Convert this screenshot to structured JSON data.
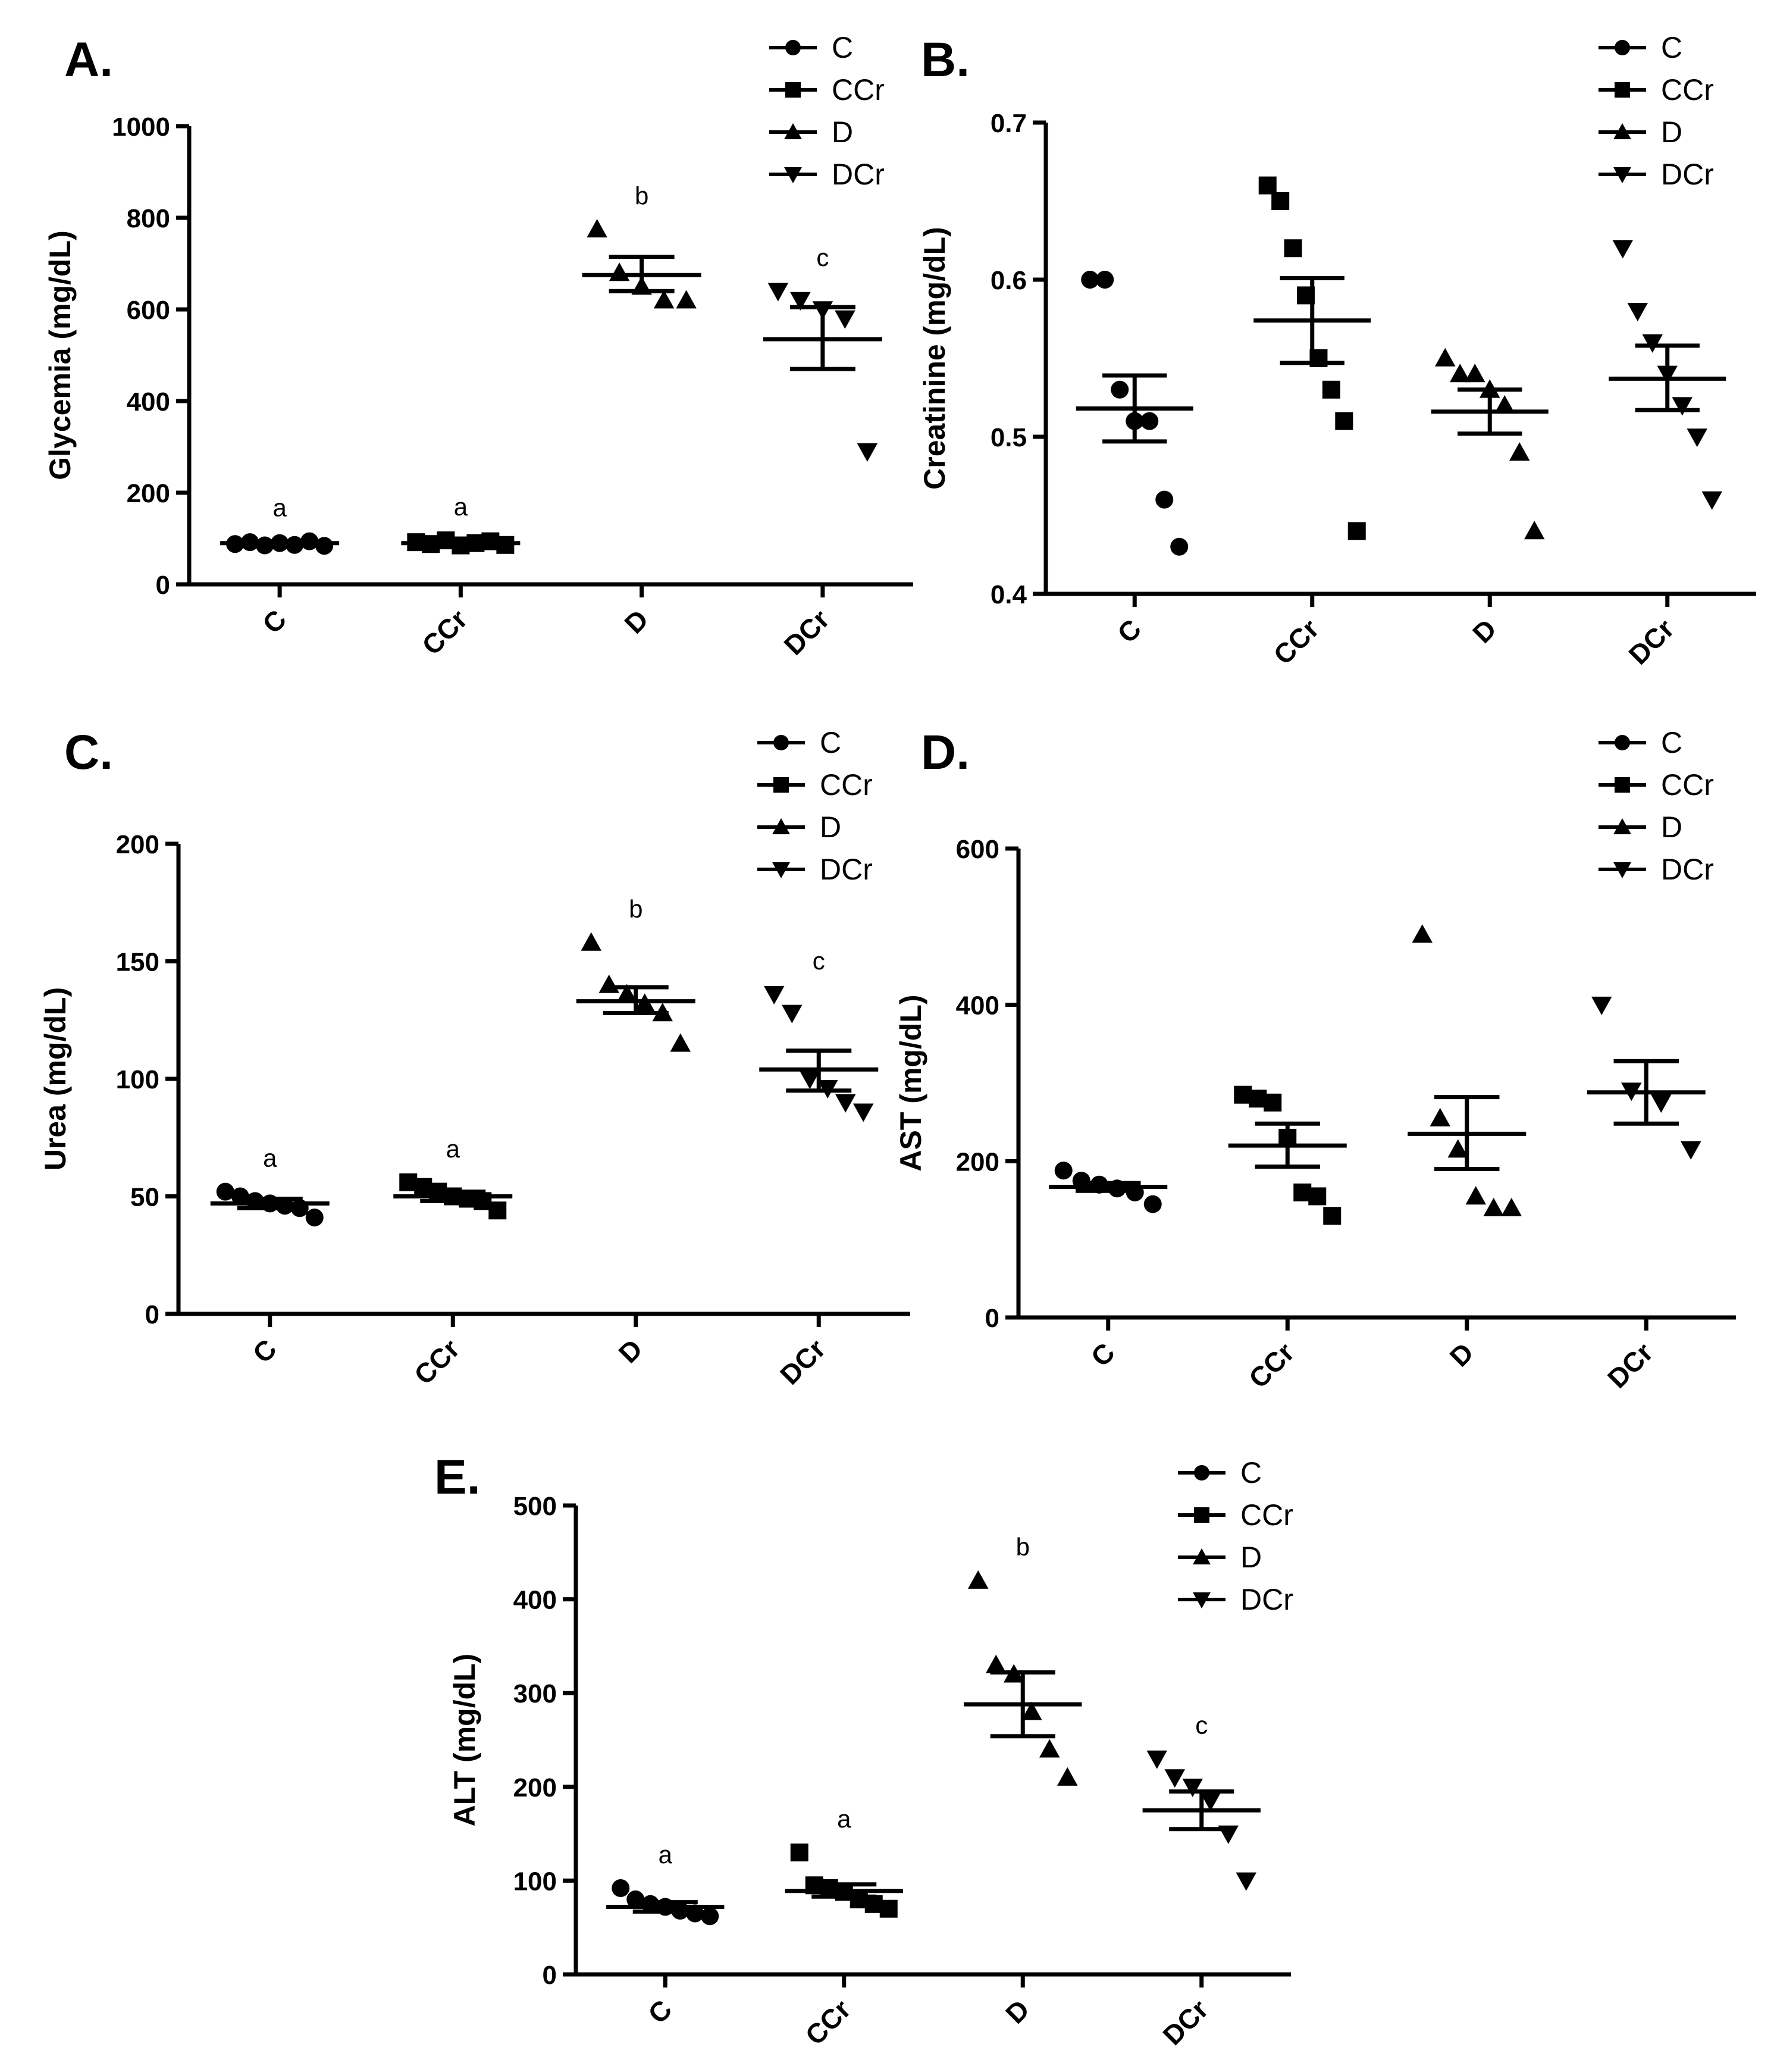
{
  "chart_data": [
    {
      "panel": "A.",
      "type": "scatter",
      "ylabel": "Glycemia (mg/dL)",
      "ylim": [
        0,
        1000
      ],
      "yticks": [
        0,
        200,
        400,
        600,
        800,
        1000
      ],
      "categories": [
        "C",
        "CCr",
        "D",
        "DCr"
      ],
      "legend": [
        "C",
        "CCr",
        "D",
        "DCr"
      ],
      "series": [
        {
          "name": "C",
          "marker": "circle",
          "points": [
            88,
            92,
            85,
            90,
            86,
            94,
            84
          ],
          "mean": 90,
          "sem_low": 86,
          "sem_high": 94,
          "sig": "a"
        },
        {
          "name": "CCr",
          "marker": "square",
          "points": [
            92,
            88,
            96,
            85,
            90,
            94,
            86
          ],
          "mean": 90,
          "sem_low": 86,
          "sem_high": 94,
          "sig": "a"
        },
        {
          "name": "D",
          "marker": "triangle-up",
          "points": [
            775,
            680,
            650,
            620,
            620
          ],
          "mean": 675,
          "sem_low": 640,
          "sem_high": 715,
          "sig": "b"
        },
        {
          "name": "DCr",
          "marker": "triangle-down",
          "points": [
            640,
            620,
            600,
            580,
            290
          ],
          "mean": 535,
          "sem_low": 470,
          "sem_high": 605,
          "sig": "c"
        }
      ]
    },
    {
      "panel": "B.",
      "type": "scatter",
      "ylabel": "Creatinine (mg/dL)",
      "ylim": [
        0.4,
        0.7
      ],
      "yticks": [
        0.4,
        0.5,
        0.6,
        0.7
      ],
      "categories": [
        "C",
        "CCr",
        "D",
        "DCr"
      ],
      "legend": [
        "C",
        "CCr",
        "D",
        "DCr"
      ],
      "series": [
        {
          "name": "C",
          "marker": "circle",
          "points": [
            0.6,
            0.6,
            0.53,
            0.51,
            0.51,
            0.46,
            0.43
          ],
          "mean": 0.518,
          "sem_low": 0.497,
          "sem_high": 0.539
        },
        {
          "name": "CCr",
          "marker": "square",
          "points": [
            0.66,
            0.65,
            0.62,
            0.59,
            0.55,
            0.53,
            0.51,
            0.44
          ],
          "mean": 0.574,
          "sem_low": 0.547,
          "sem_high": 0.601
        },
        {
          "name": "D",
          "marker": "triangle-up",
          "points": [
            0.55,
            0.54,
            0.54,
            0.53,
            0.52,
            0.49,
            0.44
          ],
          "mean": 0.516,
          "sem_low": 0.502,
          "sem_high": 0.53
        },
        {
          "name": "DCr",
          "marker": "triangle-down",
          "points": [
            0.62,
            0.58,
            0.56,
            0.54,
            0.52,
            0.5,
            0.46
          ],
          "mean": 0.537,
          "sem_low": 0.517,
          "sem_high": 0.558
        }
      ]
    },
    {
      "panel": "C.",
      "type": "scatter",
      "ylabel": "Urea (mg/dL)",
      "ylim": [
        0,
        200
      ],
      "yticks": [
        0,
        50,
        100,
        150,
        200
      ],
      "categories": [
        "C",
        "CCr",
        "D",
        "DCr"
      ],
      "legend": [
        "C",
        "CCr",
        "D",
        "DCr"
      ],
      "series": [
        {
          "name": "C",
          "marker": "circle",
          "points": [
            52,
            50,
            48,
            47,
            46,
            45,
            41
          ],
          "mean": 47,
          "sem_low": 45,
          "sem_high": 49,
          "sig": "a"
        },
        {
          "name": "CCr",
          "marker": "square",
          "points": [
            56,
            54,
            52,
            50,
            49,
            48,
            44
          ],
          "mean": 50,
          "sem_low": 48,
          "sem_high": 52,
          "sig": "a"
        },
        {
          "name": "D",
          "marker": "triangle-up",
          "points": [
            158,
            140,
            136,
            132,
            128,
            115
          ],
          "mean": 133,
          "sem_low": 128,
          "sem_high": 139,
          "sig": "b"
        },
        {
          "name": "DCr",
          "marker": "triangle-down",
          "points": [
            136,
            128,
            100,
            96,
            90,
            86
          ],
          "mean": 104,
          "sem_low": 95,
          "sem_high": 112,
          "sig": "c"
        }
      ]
    },
    {
      "panel": "D.",
      "type": "scatter",
      "ylabel": "AST (mg/dL)",
      "ylim": [
        0,
        600
      ],
      "yticks": [
        0,
        200,
        400,
        600
      ],
      "categories": [
        "C",
        "CCr",
        "D",
        "DCr"
      ],
      "legend": [
        "C",
        "CCr",
        "D",
        "DCr"
      ],
      "series": [
        {
          "name": "C",
          "marker": "circle",
          "points": [
            188,
            175,
            170,
            165,
            160,
            145
          ],
          "mean": 167,
          "sem_low": 162,
          "sem_high": 172
        },
        {
          "name": "CCr",
          "marker": "square",
          "points": [
            285,
            280,
            275,
            230,
            160,
            155,
            130
          ],
          "mean": 220,
          "sem_low": 193,
          "sem_high": 248
        },
        {
          "name": "D",
          "marker": "triangle-up",
          "points": [
            490,
            255,
            215,
            155,
            140,
            140
          ],
          "mean": 235,
          "sem_low": 190,
          "sem_high": 282
        },
        {
          "name": "DCr",
          "marker": "triangle-down",
          "points": [
            400,
            290,
            275,
            215
          ],
          "mean": 288,
          "sem_low": 248,
          "sem_high": 328
        }
      ]
    },
    {
      "panel": "E.",
      "type": "scatter",
      "ylabel": "ALT (mg/dL)",
      "ylim": [
        0,
        500
      ],
      "yticks": [
        0,
        100,
        200,
        300,
        400,
        500
      ],
      "categories": [
        "C",
        "CCr",
        "D",
        "DCr"
      ],
      "legend": [
        "C",
        "CCr",
        "D",
        "DCr"
      ],
      "series": [
        {
          "name": "C",
          "marker": "circle",
          "points": [
            92,
            80,
            75,
            72,
            68,
            65,
            62
          ],
          "mean": 72,
          "sem_low": 67,
          "sem_high": 77,
          "sig": "a"
        },
        {
          "name": "CCr",
          "marker": "square",
          "points": [
            130,
            95,
            92,
            88,
            80,
            75,
            70
          ],
          "mean": 89,
          "sem_low": 83,
          "sem_high": 96,
          "sig": "a"
        },
        {
          "name": "D",
          "marker": "triangle-up",
          "points": [
            420,
            330,
            320,
            280,
            240,
            210
          ],
          "mean": 288,
          "sem_low": 254,
          "sem_high": 322,
          "sig": "b"
        },
        {
          "name": "DCr",
          "marker": "triangle-down",
          "points": [
            230,
            210,
            200,
            185,
            150,
            100
          ],
          "mean": 175,
          "sem_low": 155,
          "sem_high": 195,
          "sig": "c"
        }
      ]
    }
  ]
}
